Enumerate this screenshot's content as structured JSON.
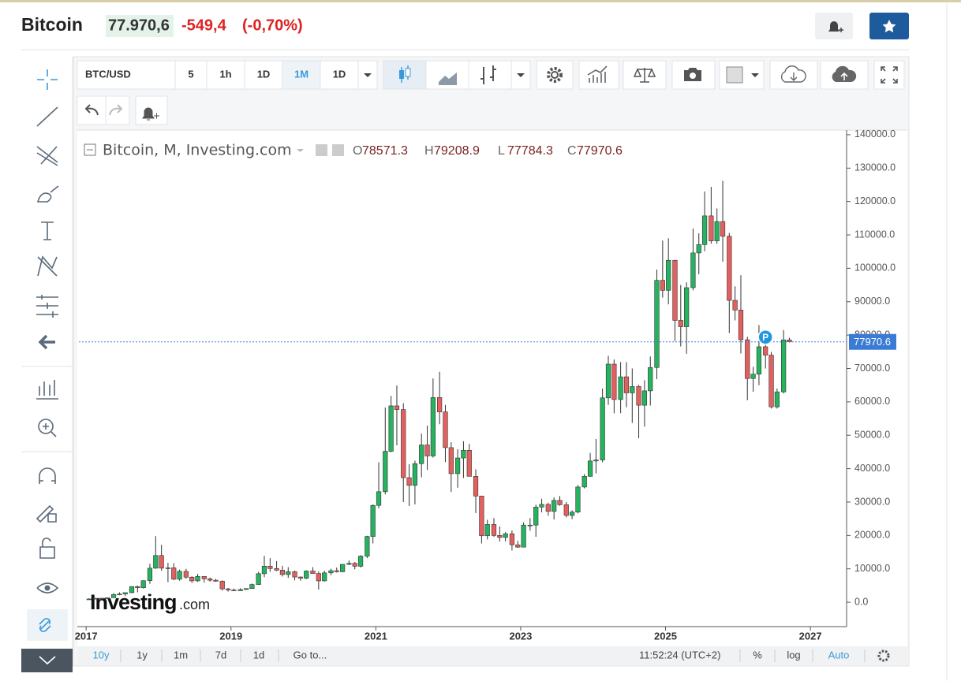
{
  "header": {
    "title": "Bitcoin",
    "price": "77.970,6",
    "change": "-549,4",
    "change_pct": "(-0,70%)"
  },
  "toolbar": {
    "symbol": "BTC/USD",
    "intervals": [
      "5",
      "1h",
      "1D",
      "1M",
      "1D"
    ]
  },
  "bottom": {
    "ranges": [
      "10y",
      "1y",
      "1m",
      "7d",
      "1d",
      "Go to..."
    ],
    "time": "11:52:24 (UTC+2)",
    "percent": "%",
    "log": "log",
    "auto": "Auto"
  },
  "watermark": {
    "brand": "Investing",
    "domain": ".com"
  },
  "chart_data": {
    "type": "candlestick",
    "legend": "Bitcoin, M, Investing.com",
    "ohlc_letters": [
      "O",
      "H",
      "L",
      "C"
    ],
    "annotation": "P",
    "up_color": "#26b35f",
    "down_color": "#e4605e",
    "grid": false,
    "xlim": [
      2016.9,
      2027.5
    ],
    "xticks": [
      2017,
      2019,
      2021,
      2023,
      2025,
      2027
    ],
    "ylim": [
      -7300,
      141400
    ],
    "yticks": [
      {
        "value": 0,
        "label": "0.0"
      },
      {
        "value": 10000,
        "label": "10000.0"
      },
      {
        "value": 20000,
        "label": "20000.0"
      },
      {
        "value": 30000,
        "label": "30000.0"
      },
      {
        "value": 40000,
        "label": "40000.0"
      },
      {
        "value": 50000,
        "label": "50000.0"
      },
      {
        "value": 60000,
        "label": "60000.0"
      },
      {
        "value": 70000,
        "label": "70000.0"
      },
      {
        "value": 80000,
        "label": "80000.0"
      },
      {
        "value": 90000,
        "label": "90000.0"
      },
      {
        "value": 100000,
        "label": "100000.0"
      },
      {
        "value": 110000,
        "label": "110000.0"
      },
      {
        "value": 120000,
        "label": "120000.0"
      },
      {
        "value": 130000,
        "label": "130000.0"
      },
      {
        "value": 140000,
        "label": "140000.0"
      }
    ],
    "x": [
      2017.04,
      2017.13,
      2017.21,
      2017.29,
      2017.38,
      2017.46,
      2017.54,
      2017.63,
      2017.71,
      2017.79,
      2017.88,
      2017.96,
      2018.04,
      2018.13,
      2018.21,
      2018.29,
      2018.38,
      2018.46,
      2018.54,
      2018.63,
      2018.71,
      2018.79,
      2018.88,
      2018.96,
      2019.04,
      2019.13,
      2019.21,
      2019.29,
      2019.38,
      2019.46,
      2019.54,
      2019.63,
      2019.71,
      2019.79,
      2019.88,
      2019.96,
      2020.04,
      2020.13,
      2020.21,
      2020.29,
      2020.38,
      2020.46,
      2020.54,
      2020.63,
      2020.71,
      2020.79,
      2020.88,
      2020.96,
      2021.04,
      2021.13,
      2021.21,
      2021.29,
      2021.38,
      2021.46,
      2021.54,
      2021.63,
      2021.71,
      2021.79,
      2021.88,
      2021.96,
      2022.04,
      2022.13,
      2022.21,
      2022.29,
      2022.38,
      2022.46,
      2022.54,
      2022.63,
      2022.71,
      2022.79,
      2022.88,
      2022.96,
      2023.04,
      2023.13,
      2023.21,
      2023.29,
      2023.38,
      2023.46,
      2023.54,
      2023.63,
      2023.71,
      2023.79,
      2023.88,
      2023.96,
      2024.04,
      2024.13,
      2024.21,
      2024.29,
      2024.38,
      2024.46,
      2024.54,
      2024.63,
      2024.71,
      2024.79,
      2024.88,
      2024.96,
      2025.04,
      2025.13,
      2025.21,
      2025.29,
      2025.38,
      2025.46,
      2025.54,
      2025.63,
      2025.71,
      2025.79,
      2025.88,
      2025.96,
      2026.04,
      2026.13,
      2026.21,
      2026.29,
      2026.38,
      2026.46,
      2026.54,
      2026.63,
      2026.71
    ],
    "open": [
      960,
      970,
      1190,
      1080,
      1350,
      2300,
      2480,
      2870,
      4700,
      4340,
      6470,
      10200,
      14000,
      10200,
      10300,
      6900,
      9250,
      7500,
      6400,
      7730,
      7000,
      6600,
      6300,
      4000,
      3700,
      3450,
      3800,
      4100,
      5300,
      8550,
      10800,
      10100,
      9600,
      8300,
      9150,
      7550,
      7200,
      9350,
      8600,
      6400,
      8800,
      9450,
      9140,
      11350,
      11650,
      10780,
      13800,
      19700,
      29000,
      33100,
      45200,
      58800,
      57700,
      37300,
      35000,
      41500,
      47100,
      43800,
      61300,
      57000,
      46300,
      38500,
      43200,
      45500,
      37700,
      31800,
      19900,
      23300,
      20000,
      19400,
      20500,
      17200,
      16500,
      23100,
      23100,
      28500,
      29300,
      27200,
      30500,
      29200,
      26000,
      27000,
      34500,
      37700,
      42300,
      42600,
      61200,
      71300,
      60700,
      67500,
      62700,
      64600,
      59000,
      63300,
      70300,
      96400,
      93400,
      102400,
      84400,
      82500,
      94200,
      104600,
      107100,
      115700,
      108200,
      114000,
      109600,
      90400,
      87500,
      78600,
      67000,
      68300,
      76500,
      74000,
      58500,
      63000,
      78571.3
    ],
    "high": [
      1190,
      1210,
      1300,
      1350,
      2760,
      2980,
      2930,
      4760,
      5000,
      6470,
      11500,
      19800,
      17200,
      11800,
      11700,
      9750,
      9990,
      7780,
      8500,
      7760,
      7400,
      7000,
      6550,
      4300,
      4100,
      4200,
      4150,
      5600,
      9100,
      13900,
      13200,
      12300,
      10900,
      10500,
      9500,
      7750,
      9550,
      10500,
      9200,
      9450,
      10050,
      10400,
      11450,
      12500,
      12050,
      14100,
      19900,
      29300,
      41900,
      58300,
      61800,
      64900,
      59600,
      41300,
      42400,
      50500,
      52900,
      67000,
      69000,
      59100,
      47900,
      45800,
      48200,
      47400,
      39800,
      31900,
      24700,
      25200,
      22700,
      21000,
      21500,
      18400,
      23900,
      25200,
      29200,
      31000,
      29800,
      31400,
      31800,
      30000,
      27500,
      35100,
      38400,
      44700,
      48900,
      64000,
      73800,
      72700,
      71900,
      71900,
      70000,
      65100,
      66500,
      73600,
      99600,
      108300,
      109000,
      102500,
      95000,
      95800,
      111900,
      110500,
      123000,
      124400,
      117900,
      126200,
      110600,
      94600,
      97900,
      79500,
      70500,
      83000,
      79500,
      75000,
      64000,
      81500,
      79208.9
    ],
    "low": [
      750,
      920,
      890,
      1070,
      1350,
      2100,
      1830,
      2700,
      2970,
      4110,
      5520,
      10000,
      9400,
      6000,
      6600,
      6450,
      7050,
      5770,
      6100,
      5880,
      6150,
      6150,
      3500,
      3200,
      3350,
      3400,
      3700,
      4050,
      5300,
      7500,
      9100,
      9350,
      7700,
      7300,
      6550,
      6450,
      6900,
      8500,
      3800,
      6200,
      8100,
      8900,
      8950,
      11100,
      9850,
      10400,
      13200,
      17600,
      28100,
      32300,
      44900,
      47000,
      30000,
      28800,
      29300,
      37400,
      39600,
      43300,
      53300,
      42000,
      33000,
      34300,
      37200,
      37700,
      26700,
      17600,
      18800,
      19600,
      18200,
      18200,
      15500,
      16300,
      16500,
      21400,
      19600,
      26900,
      25900,
      24800,
      28900,
      25400,
      24900,
      26600,
      34100,
      37600,
      38600,
      41900,
      59100,
      56600,
      56600,
      58400,
      53700,
      49100,
      52600,
      58900,
      66800,
      91200,
      89200,
      78200,
      76600,
      74400,
      93400,
      98200,
      105100,
      107400,
      107300,
      102000,
      80600,
      84400,
      74500,
      60500,
      63000,
      65000,
      70000,
      58000,
      58000,
      62500,
      77784.3
    ],
    "close": [
      970,
      1190,
      1080,
      1350,
      2300,
      2480,
      2870,
      4700,
      4340,
      6470,
      10200,
      14000,
      10200,
      10300,
      6900,
      9250,
      7500,
      6400,
      7730,
      7000,
      6600,
      6300,
      4000,
      3700,
      3450,
      3800,
      4100,
      5300,
      8550,
      10800,
      10100,
      9600,
      8300,
      9150,
      7550,
      7200,
      9350,
      8600,
      6400,
      8800,
      9450,
      9140,
      11350,
      11650,
      10780,
      13800,
      19700,
      29000,
      33100,
      45200,
      58800,
      57700,
      37300,
      35000,
      41500,
      47100,
      43800,
      61300,
      57000,
      46300,
      38500,
      43200,
      45500,
      37700,
      31800,
      19900,
      23300,
      20000,
      19400,
      20500,
      17200,
      16500,
      23100,
      23100,
      28500,
      29300,
      27200,
      30500,
      29200,
      26000,
      27000,
      34500,
      37700,
      42300,
      42600,
      61200,
      71300,
      60700,
      67500,
      62700,
      64600,
      59000,
      63300,
      70300,
      96400,
      93400,
      102400,
      84400,
      82500,
      94200,
      104600,
      107100,
      115700,
      108200,
      114000,
      109600,
      90400,
      87500,
      78600,
      67000,
      68300,
      76500,
      74000,
      58500,
      63000,
      78571.3,
      77970.6
    ]
  }
}
